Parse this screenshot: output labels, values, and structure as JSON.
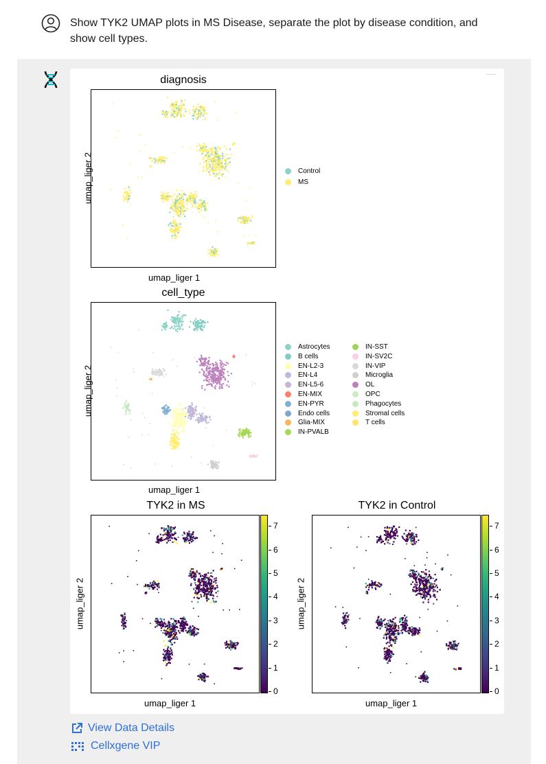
{
  "user_message": {
    "text": "Show TYK2 UMAP plots in MS Disease, separate the plot by disease condition, and show cell types."
  },
  "plots": {
    "diagnosis": {
      "title": "diagnosis",
      "xlabel": "umap_liger 1",
      "ylabel": "umap_liger 2",
      "legend": [
        {
          "label": "Control",
          "color": "#8dd3c7"
        },
        {
          "label": "MS",
          "color": "#ffed6f"
        }
      ]
    },
    "cell_type": {
      "title": "cell_type",
      "xlabel": "umap_liger 1",
      "ylabel": "umap_liger 2",
      "legend": [
        {
          "label": "Astrocytes",
          "color": "#8dd3c7"
        },
        {
          "label": "B cells",
          "color": "#80cdc1"
        },
        {
          "label": "EN-L2-3",
          "color": "#ffffb3"
        },
        {
          "label": "EN-L4",
          "color": "#bebada"
        },
        {
          "label": "EN-L5-6",
          "color": "#c2b5d6"
        },
        {
          "label": "EN-MIX",
          "color": "#fb8072"
        },
        {
          "label": "EN-PYR",
          "color": "#80b1d3"
        },
        {
          "label": "Endo cells",
          "color": "#7fa8cc"
        },
        {
          "label": "Glia-MIX",
          "color": "#fdb462"
        },
        {
          "label": "IN-PVALB",
          "color": "#a6d854"
        },
        {
          "label": "IN-SST",
          "color": "#9fd45a"
        },
        {
          "label": "IN-SV2C",
          "color": "#fccde5"
        },
        {
          "label": "IN-VIP",
          "color": "#d9d9d9"
        },
        {
          "label": "Microglia",
          "color": "#cfcfcf"
        },
        {
          "label": "OL",
          "color": "#bc80bd"
        },
        {
          "label": "OPC",
          "color": "#ccebc5"
        },
        {
          "label": "Phagocytes",
          "color": "#c7e9c0"
        },
        {
          "label": "Stromal cells",
          "color": "#ffed6f"
        },
        {
          "label": "T cells",
          "color": "#ffe36b"
        }
      ]
    },
    "tyk2_ms": {
      "title": "TYK2 in MS",
      "xlabel": "umap_liger 1",
      "ylabel": "umap_liger 2"
    },
    "tyk2_control": {
      "title": "TYK2 in Control",
      "xlabel": "umap_liger 1",
      "ylabel": "umap_liger 2"
    },
    "colorbar_ticks": [
      "7",
      "6",
      "5",
      "4",
      "3",
      "2",
      "1",
      "0"
    ]
  },
  "links": {
    "view_data": "View Data Details",
    "cellxgene": "Cellxgene VIP"
  },
  "chart_data": [
    {
      "type": "scatter",
      "title": "diagnosis",
      "xlabel": "umap_liger 1",
      "ylabel": "umap_liger 2",
      "series": [
        {
          "name": "Control",
          "color": "#8dd3c7"
        },
        {
          "name": "MS",
          "color": "#ffed6f"
        }
      ],
      "legend": "right"
    },
    {
      "type": "scatter",
      "title": "cell_type",
      "xlabel": "umap_liger 1",
      "ylabel": "umap_liger 2",
      "legend": "right"
    },
    {
      "type": "scatter",
      "title": "TYK2 in MS",
      "xlabel": "umap_liger 1",
      "ylabel": "umap_liger 2",
      "colorbar_range": [
        0,
        7.5
      ],
      "colormap": "viridis"
    },
    {
      "type": "scatter",
      "title": "TYK2 in Control",
      "xlabel": "umap_liger 1",
      "ylabel": "umap_liger 2",
      "colorbar_range": [
        0,
        7.5
      ],
      "colormap": "viridis"
    }
  ]
}
